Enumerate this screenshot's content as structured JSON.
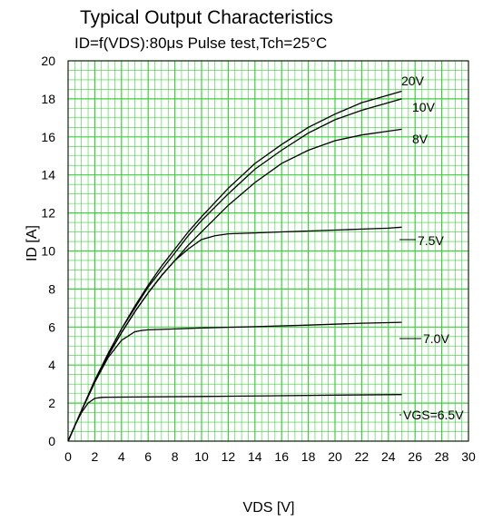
{
  "chart_data": {
    "type": "line",
    "title": "Typical Output Characteristics",
    "subtitle": "ID=f(VDS):80μs Pulse test,Tch=25°C",
    "xlabel": "VDS [V]",
    "ylabel": "ID [A]",
    "xlim": [
      0,
      30
    ],
    "ylim": [
      0,
      20
    ],
    "xticks": [
      "0",
      "2",
      "4",
      "6",
      "8",
      "10",
      "12",
      "14",
      "16",
      "18",
      "20",
      "22",
      "24",
      "26",
      "28",
      "30"
    ],
    "yticks": [
      "0",
      "2",
      "4",
      "6",
      "8",
      "10",
      "12",
      "14",
      "16",
      "18",
      "20"
    ],
    "grid": true,
    "grid_color": "#3ad13a",
    "curve_color": "#000000",
    "series": [
      {
        "name": "20V",
        "x": [
          0,
          1,
          2,
          3,
          4,
          5,
          6,
          7,
          8,
          9,
          10,
          12,
          14,
          16,
          18,
          20,
          22,
          24,
          25
        ],
        "y": [
          0,
          1.6,
          3.2,
          4.6,
          5.9,
          7.1,
          8.2,
          9.2,
          10.1,
          11.0,
          11.8,
          13.3,
          14.6,
          15.6,
          16.5,
          17.2,
          17.8,
          18.2,
          18.4
        ]
      },
      {
        "name": "10V",
        "x": [
          0,
          1,
          2,
          3,
          4,
          5,
          6,
          7,
          8,
          9,
          10,
          12,
          14,
          16,
          18,
          20,
          22,
          24,
          25
        ],
        "y": [
          0,
          1.6,
          3.2,
          4.6,
          5.9,
          7.0,
          8.1,
          9.0,
          9.9,
          10.8,
          11.6,
          13.0,
          14.3,
          15.3,
          16.2,
          16.9,
          17.4,
          17.8,
          18.0
        ]
      },
      {
        "name": "8V",
        "x": [
          0,
          1,
          2,
          3,
          4,
          5,
          6,
          7,
          8,
          9,
          10,
          12,
          14,
          16,
          18,
          20,
          22,
          24,
          25
        ],
        "y": [
          0,
          1.6,
          3.1,
          4.5,
          5.7,
          6.8,
          7.8,
          8.7,
          9.5,
          10.3,
          11.0,
          12.4,
          13.6,
          14.6,
          15.3,
          15.8,
          16.1,
          16.3,
          16.4
        ]
      },
      {
        "name": "7.5V",
        "x": [
          0,
          1,
          2,
          3,
          4,
          5,
          6,
          7,
          8,
          9,
          10,
          11,
          12,
          14,
          16,
          18,
          20,
          22,
          24,
          25
        ],
        "y": [
          0,
          1.6,
          3.1,
          4.5,
          5.7,
          6.8,
          7.8,
          8.7,
          9.5,
          10.1,
          10.6,
          10.8,
          10.9,
          10.95,
          11.0,
          11.05,
          11.1,
          11.15,
          11.2,
          11.25
        ]
      },
      {
        "name": "7.0V",
        "x": [
          0,
          1,
          2,
          3,
          4,
          5,
          5.5,
          6,
          8,
          10,
          14,
          18,
          22,
          25
        ],
        "y": [
          0,
          1.6,
          3.1,
          4.4,
          5.3,
          5.75,
          5.82,
          5.85,
          5.9,
          5.95,
          6.02,
          6.1,
          6.2,
          6.25
        ]
      },
      {
        "name": "VGS=6.5V",
        "x": [
          0,
          0.5,
          1,
          1.5,
          2,
          2.5,
          3,
          5,
          10,
          15,
          20,
          25
        ],
        "y": [
          0,
          0.8,
          1.5,
          2.0,
          2.25,
          2.3,
          2.31,
          2.32,
          2.35,
          2.38,
          2.42,
          2.45
        ]
      }
    ],
    "curve_labels": [
      "20V",
      "10V",
      "8V",
      "7.5V",
      "7.0V",
      "VGS=6.5V"
    ]
  }
}
